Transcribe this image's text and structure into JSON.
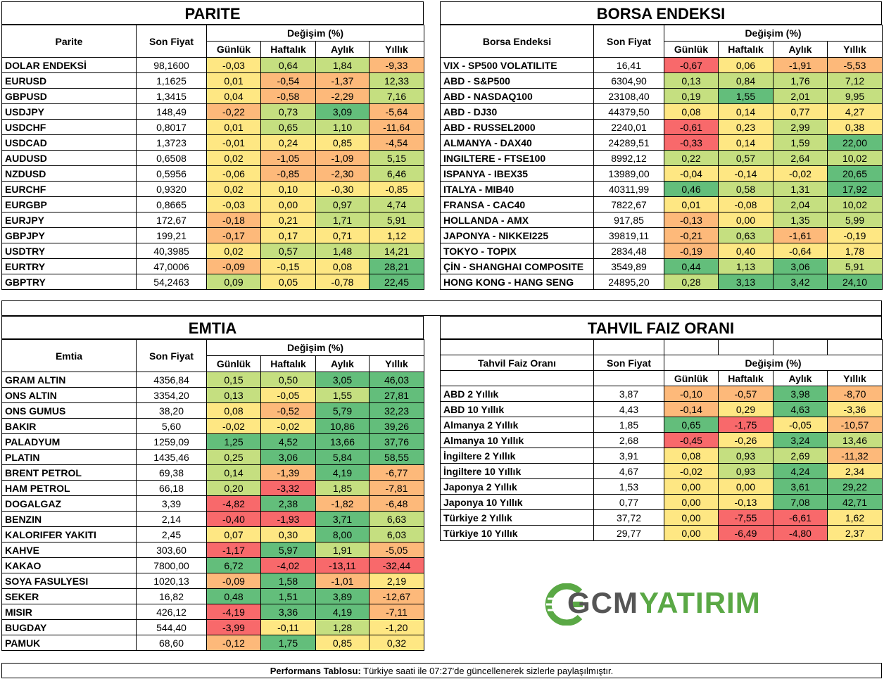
{
  "colors": {
    "green": "#63be7b",
    "light_green": "#c5df80",
    "yellow": "#fee783",
    "orange": "#fdb97a",
    "red": "#f8696b"
  },
  "parite": {
    "title": "PARITE",
    "headers": {
      "name": "Parite",
      "price": "Son Fiyat",
      "change": "Değişim (%)",
      "d": "Günlük",
      "w": "Haftalık",
      "m": "Aylık",
      "y": "Yıllık"
    },
    "rows": [
      {
        "name": "DOLAR ENDEKSİ",
        "price": "98,1600",
        "vals": [
          "-0,03",
          "0,64",
          "1,84",
          "-9,33"
        ]
      },
      {
        "name": "EURUSD",
        "price": "1,1625",
        "vals": [
          "0,01",
          "-0,54",
          "-1,37",
          "12,33"
        ]
      },
      {
        "name": "GBPUSD",
        "price": "1,3415",
        "vals": [
          "0,04",
          "-0,58",
          "-2,29",
          "7,16"
        ]
      },
      {
        "name": "USDJPY",
        "price": "148,49",
        "vals": [
          "-0,22",
          "0,73",
          "3,09",
          "-5,64"
        ]
      },
      {
        "name": "USDCHF",
        "price": "0,8017",
        "vals": [
          "0,01",
          "0,65",
          "1,10",
          "-11,64"
        ]
      },
      {
        "name": "USDCAD",
        "price": "1,3723",
        "vals": [
          "-0,01",
          "0,24",
          "0,85",
          "-4,54"
        ]
      },
      {
        "name": "AUDUSD",
        "price": "0,6508",
        "vals": [
          "0,02",
          "-1,05",
          "-1,09",
          "5,15"
        ]
      },
      {
        "name": "NZDUSD",
        "price": "0,5956",
        "vals": [
          "-0,06",
          "-0,85",
          "-2,30",
          "6,46"
        ]
      },
      {
        "name": "EURCHF",
        "price": "0,9320",
        "vals": [
          "0,02",
          "0,10",
          "-0,30",
          "-0,85"
        ]
      },
      {
        "name": "EURGBP",
        "price": "0,8665",
        "vals": [
          "-0,03",
          "0,00",
          "0,97",
          "4,74"
        ]
      },
      {
        "name": "EURJPY",
        "price": "172,67",
        "vals": [
          "-0,18",
          "0,21",
          "1,71",
          "5,91"
        ]
      },
      {
        "name": "GBPJPY",
        "price": "199,21",
        "vals": [
          "-0,17",
          "0,17",
          "0,71",
          "1,12"
        ]
      },
      {
        "name": "USDTRY",
        "price": "40,3985",
        "vals": [
          "0,02",
          "0,57",
          "1,48",
          "14,21"
        ]
      },
      {
        "name": "EURTRY",
        "price": "47,0006",
        "vals": [
          "-0,09",
          "-0,15",
          "0,08",
          "28,21"
        ]
      },
      {
        "name": "GBPTRY",
        "price": "54,2463",
        "vals": [
          "0,09",
          "0,05",
          "-0,78",
          "22,45"
        ]
      }
    ]
  },
  "borsa": {
    "title": "BORSA ENDEKSI",
    "headers": {
      "name": "Borsa Endeksi",
      "price": "Son Fiyat",
      "change": "Değişim (%)",
      "d": "Günlük",
      "w": "Haftalık",
      "m": "Aylık",
      "y": "Yıllık"
    },
    "rows": [
      {
        "name": "VIX  - SP500 VOLATILITE",
        "price": "16,41",
        "vals": [
          "-0,67",
          "0,06",
          "-1,91",
          "-5,53"
        ]
      },
      {
        "name": "ABD - S&P500",
        "price": "6304,90",
        "vals": [
          "0,13",
          "0,84",
          "1,76",
          "7,12"
        ]
      },
      {
        "name": "ABD - NASDAQ100",
        "price": "23108,40",
        "vals": [
          "0,19",
          "1,55",
          "2,01",
          "9,95"
        ]
      },
      {
        "name": "ABD - DJ30",
        "price": "44379,50",
        "vals": [
          "0,08",
          "0,14",
          "0,77",
          "4,27"
        ]
      },
      {
        "name": "ABD - RUSSEL2000",
        "price": "2240,01",
        "vals": [
          "-0,61",
          "0,23",
          "2,99",
          "0,38"
        ]
      },
      {
        "name": "ALMANYA - DAX40",
        "price": "24289,51",
        "vals": [
          "-0,33",
          "0,14",
          "1,59",
          "22,00"
        ]
      },
      {
        "name": "INGILTERE - FTSE100",
        "price": "8992,12",
        "vals": [
          "0,22",
          "0,57",
          "2,64",
          "10,02"
        ]
      },
      {
        "name": "ISPANYA - IBEX35",
        "price": "13989,00",
        "vals": [
          "-0,04",
          "-0,14",
          "-0,02",
          "20,65"
        ]
      },
      {
        "name": "ITALYA - MIB40",
        "price": "40311,99",
        "vals": [
          "0,46",
          "0,58",
          "1,31",
          "17,92"
        ]
      },
      {
        "name": "FRANSA - CAC40",
        "price": "7822,67",
        "vals": [
          "0,01",
          "-0,08",
          "2,04",
          "10,02"
        ]
      },
      {
        "name": "HOLLANDA - AMX",
        "price": "917,85",
        "vals": [
          "-0,13",
          "0,00",
          "1,35",
          "5,99"
        ]
      },
      {
        "name": "JAPONYA - NIKKEI225",
        "price": "39819,11",
        "vals": [
          "-0,21",
          "0,63",
          "-1,61",
          "-0,19"
        ]
      },
      {
        "name": "TOKYO - TOPIX",
        "price": "2834,48",
        "vals": [
          "-0,19",
          "0,40",
          "-0,64",
          "1,78"
        ]
      },
      {
        "name": "ÇİN - SHANGHAI COMPOSITE",
        "price": "3549,89",
        "vals": [
          "0,44",
          "1,13",
          "3,06",
          "5,91"
        ]
      },
      {
        "name": "HONG KONG - HANG SENG",
        "price": "24895,20",
        "vals": [
          "0,28",
          "3,13",
          "3,42",
          "24,10"
        ]
      }
    ]
  },
  "emtia": {
    "title": "EMTIA",
    "headers": {
      "name": "Emtia",
      "price": "Son Fiyat",
      "change": "Değişim (%)",
      "d": "Günlük",
      "w": "Haftalık",
      "m": "Aylık",
      "y": "Yıllık"
    },
    "rows": [
      {
        "name": "GRAM ALTIN",
        "price": "4356,84",
        "vals": [
          "0,15",
          "0,50",
          "3,05",
          "46,03"
        ]
      },
      {
        "name": "ONS ALTIN",
        "price": "3354,20",
        "vals": [
          "0,13",
          "-0,05",
          "1,55",
          "27,81"
        ]
      },
      {
        "name": "ONS GUMUS",
        "price": "38,20",
        "vals": [
          "0,08",
          "-0,52",
          "5,79",
          "32,23"
        ]
      },
      {
        "name": "BAKIR",
        "price": "5,60",
        "vals": [
          "-0,02",
          "-0,02",
          "10,86",
          "39,26"
        ]
      },
      {
        "name": "PALADYUM",
        "price": "1259,09",
        "vals": [
          "1,25",
          "4,52",
          "13,66",
          "37,76"
        ]
      },
      {
        "name": "PLATIN",
        "price": "1435,46",
        "vals": [
          "0,25",
          "3,06",
          "5,84",
          "58,55"
        ]
      },
      {
        "name": "BRENT PETROL",
        "price": "69,38",
        "vals": [
          "0,14",
          "-1,39",
          "4,19",
          "-6,77"
        ]
      },
      {
        "name": "HAM PETROL",
        "price": "66,18",
        "vals": [
          "0,20",
          "-3,32",
          "1,85",
          "-7,81"
        ]
      },
      {
        "name": "DOGALGAZ",
        "price": "3,39",
        "vals": [
          "-4,82",
          "2,38",
          "-1,82",
          "-6,48"
        ]
      },
      {
        "name": "BENZIN",
        "price": "2,14",
        "vals": [
          "-0,40",
          "-1,93",
          "3,71",
          "6,63"
        ]
      },
      {
        "name": "KALORIFER YAKITI",
        "price": "2,45",
        "vals": [
          "0,07",
          "0,30",
          "8,00",
          "6,03"
        ]
      },
      {
        "name": "KAHVE",
        "price": "303,60",
        "vals": [
          "-1,17",
          "5,97",
          "1,91",
          "-5,05"
        ]
      },
      {
        "name": "KAKAO",
        "price": "7800,00",
        "vals": [
          "6,72",
          "-4,02",
          "-13,11",
          "-32,44"
        ]
      },
      {
        "name": "SOYA FASULYESI",
        "price": "1020,13",
        "vals": [
          "-0,09",
          "1,58",
          "-1,01",
          "2,19"
        ]
      },
      {
        "name": "SEKER",
        "price": "16,82",
        "vals": [
          "0,48",
          "1,51",
          "3,89",
          "-12,67"
        ]
      },
      {
        "name": "MISIR",
        "price": "426,12",
        "vals": [
          "-4,19",
          "3,36",
          "4,19",
          "-7,11"
        ]
      },
      {
        "name": "BUGDAY",
        "price": "544,40",
        "vals": [
          "-3,99",
          "-0,11",
          "1,28",
          "-1,20"
        ]
      },
      {
        "name": "PAMUK",
        "price": "68,60",
        "vals": [
          "-0,12",
          "1,75",
          "0,85",
          "0,32"
        ]
      }
    ]
  },
  "tahvil": {
    "title": "TAHVIL FAIZ ORANI",
    "headers": {
      "name": "Tahvil Faiz Oranı",
      "price": "Son Fiyat",
      "change": "Değişim (%)",
      "d": "Günlük",
      "w": "Haftalık",
      "m": "Aylık",
      "y": "Yıllık"
    },
    "rows": [
      {
        "name": "ABD 2 Yıllık",
        "price": "3,87",
        "vals": [
          "-0,10",
          "-0,57",
          "3,98",
          "-8,70"
        ]
      },
      {
        "name": "ABD 10 Yıllık",
        "price": "4,43",
        "vals": [
          "-0,14",
          "0,29",
          "4,63",
          "-3,36"
        ]
      },
      {
        "name": "Almanya 2 Yıllık",
        "price": "1,85",
        "vals": [
          "0,65",
          "-1,75",
          "-0,05",
          "-10,57"
        ]
      },
      {
        "name": "Almanya 10 Yıllık",
        "price": "2,68",
        "vals": [
          "-0,45",
          "-0,26",
          "3,24",
          "13,46"
        ]
      },
      {
        "name": "İngiltere 2 Yıllık",
        "price": "3,91",
        "vals": [
          "0,08",
          "0,93",
          "2,69",
          "-11,32"
        ]
      },
      {
        "name": "İngiltere 10 Yıllık",
        "price": "4,67",
        "vals": [
          "-0,02",
          "0,93",
          "4,24",
          "2,34"
        ]
      },
      {
        "name": "Japonya 2 Yıllık",
        "price": "1,53",
        "vals": [
          "0,00",
          "0,00",
          "3,61",
          "29,22"
        ]
      },
      {
        "name": "Japonya 10 Yıllık",
        "price": "0,77",
        "vals": [
          "0,00",
          "-0,13",
          "7,08",
          "42,71"
        ]
      },
      {
        "name": "Türkiye 2 Yıllık",
        "price": "37,72",
        "vals": [
          "0,00",
          "-7,55",
          "-6,61",
          "1,62"
        ]
      },
      {
        "name": "Türkiye 10 Yıllık",
        "price": "29,77",
        "vals": [
          "0,00",
          "-6,49",
          "-4,80",
          "2,37"
        ]
      }
    ]
  },
  "logo": {
    "part1": "GCM",
    "part2": "YATIRIM"
  },
  "footer": {
    "bold": "Performans Tablosu:",
    "text": " Türkiye saati ile 07:27'de güncellenerek sizlerle paylaşılmıştır."
  }
}
